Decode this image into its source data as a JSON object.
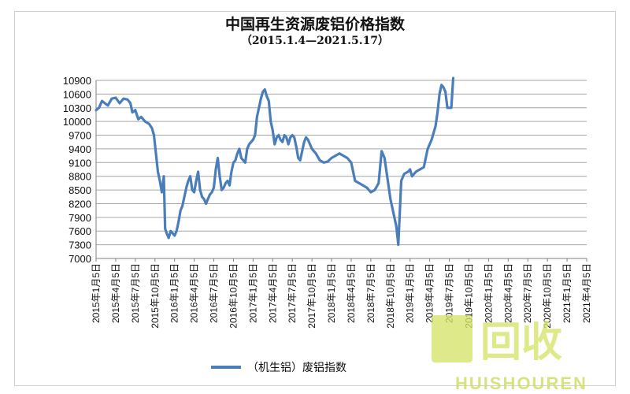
{
  "chart_data": {
    "type": "line",
    "title": "中国再生资源废铝价格指数",
    "subtitle": "（2015.1.4—2021.5.17）",
    "ylim": [
      7000,
      10900
    ],
    "yticks": [
      7000,
      7300,
      7600,
      7900,
      8200,
      8500,
      8800,
      9100,
      9400,
      9700,
      10000,
      10300,
      10600,
      10900
    ],
    "grid": true,
    "legend_position": "bottom",
    "x_categories": [
      "2015年1月5日",
      "2015年4月5日",
      "2015年7月5日",
      "2015年10月5日",
      "2016年1月5日",
      "2016年4月5日",
      "2016年7月5日",
      "2016年10月5日",
      "2017年1月5日",
      "2017年4月5日",
      "2017年7月5日",
      "2017年10月5日",
      "2018年1月5日",
      "2018年4月5日",
      "2018年7月5日",
      "2018年10月5日",
      "2019年1月5日",
      "2019年4月5日",
      "2019年7月5日",
      "2019年10月5日",
      "2020年1月5日",
      "2020年4月5日",
      "2020年7月5日",
      "2020年10月5日",
      "2021年1月5日",
      "2021年4月5日"
    ],
    "series": [
      {
        "name": "（机生铝）废铝指数",
        "color": "#4a7ebb",
        "points": [
          [
            0.0,
            10250
          ],
          [
            0.15,
            10300
          ],
          [
            0.3,
            10450
          ],
          [
            0.45,
            10400
          ],
          [
            0.6,
            10350
          ],
          [
            0.8,
            10500
          ],
          [
            1.0,
            10520
          ],
          [
            1.2,
            10400
          ],
          [
            1.4,
            10500
          ],
          [
            1.6,
            10480
          ],
          [
            1.75,
            10400
          ],
          [
            1.85,
            10200
          ],
          [
            2.0,
            10250
          ],
          [
            2.15,
            10050
          ],
          [
            2.3,
            10100
          ],
          [
            2.5,
            10000
          ],
          [
            2.7,
            9950
          ],
          [
            2.85,
            9850
          ],
          [
            2.95,
            9700
          ],
          [
            3.05,
            9300
          ],
          [
            3.15,
            8900
          ],
          [
            3.25,
            8700
          ],
          [
            3.35,
            8450
          ],
          [
            3.45,
            8800
          ],
          [
            3.52,
            7650
          ],
          [
            3.6,
            7550
          ],
          [
            3.7,
            7450
          ],
          [
            3.8,
            7600
          ],
          [
            3.9,
            7550
          ],
          [
            4.0,
            7500
          ],
          [
            4.1,
            7600
          ],
          [
            4.2,
            7800
          ],
          [
            4.3,
            8050
          ],
          [
            4.4,
            8150
          ],
          [
            4.5,
            8350
          ],
          [
            4.6,
            8550
          ],
          [
            4.7,
            8700
          ],
          [
            4.8,
            8800
          ],
          [
            4.9,
            8500
          ],
          [
            5.0,
            8450
          ],
          [
            5.1,
            8700
          ],
          [
            5.2,
            8900
          ],
          [
            5.3,
            8500
          ],
          [
            5.4,
            8350
          ],
          [
            5.5,
            8300
          ],
          [
            5.6,
            8200
          ],
          [
            5.7,
            8300
          ],
          [
            5.8,
            8400
          ],
          [
            5.9,
            8450
          ],
          [
            6.0,
            8550
          ],
          [
            6.1,
            8950
          ],
          [
            6.2,
            9200
          ],
          [
            6.3,
            8800
          ],
          [
            6.4,
            8500
          ],
          [
            6.5,
            8550
          ],
          [
            6.6,
            8650
          ],
          [
            6.7,
            8700
          ],
          [
            6.8,
            8600
          ],
          [
            6.9,
            8900
          ],
          [
            7.0,
            9100
          ],
          [
            7.1,
            9150
          ],
          [
            7.2,
            9300
          ],
          [
            7.3,
            9400
          ],
          [
            7.4,
            9200
          ],
          [
            7.5,
            9150
          ],
          [
            7.6,
            9100
          ],
          [
            7.7,
            9400
          ],
          [
            7.8,
            9500
          ],
          [
            7.9,
            9550
          ],
          [
            8.0,
            9600
          ],
          [
            8.1,
            9700
          ],
          [
            8.2,
            10100
          ],
          [
            8.3,
            10300
          ],
          [
            8.4,
            10500
          ],
          [
            8.5,
            10650
          ],
          [
            8.6,
            10700
          ],
          [
            8.7,
            10550
          ],
          [
            8.8,
            10450
          ],
          [
            8.9,
            10000
          ],
          [
            9.0,
            9800
          ],
          [
            9.1,
            9500
          ],
          [
            9.2,
            9650
          ],
          [
            9.3,
            9700
          ],
          [
            9.4,
            9600
          ],
          [
            9.5,
            9550
          ],
          [
            9.6,
            9700
          ],
          [
            9.7,
            9650
          ],
          [
            9.8,
            9500
          ],
          [
            9.9,
            9650
          ],
          [
            10.0,
            9700
          ],
          [
            10.1,
            9650
          ],
          [
            10.2,
            9450
          ],
          [
            10.3,
            9200
          ],
          [
            10.4,
            9150
          ],
          [
            10.5,
            9350
          ],
          [
            10.6,
            9550
          ],
          [
            10.7,
            9650
          ],
          [
            10.8,
            9600
          ],
          [
            10.9,
            9500
          ],
          [
            11.0,
            9400
          ],
          [
            11.2,
            9300
          ],
          [
            11.4,
            9150
          ],
          [
            11.6,
            9100
          ],
          [
            11.8,
            9120
          ],
          [
            12.0,
            9200
          ],
          [
            12.2,
            9250
          ],
          [
            12.4,
            9300
          ],
          [
            12.6,
            9250
          ],
          [
            12.8,
            9200
          ],
          [
            13.0,
            9100
          ],
          [
            13.2,
            8700
          ],
          [
            13.4,
            8650
          ],
          [
            13.6,
            8600
          ],
          [
            13.8,
            8550
          ],
          [
            14.0,
            8450
          ],
          [
            14.2,
            8500
          ],
          [
            14.4,
            8650
          ],
          [
            14.55,
            9350
          ],
          [
            14.7,
            9200
          ],
          [
            15.0,
            8300
          ],
          [
            15.3,
            7700
          ],
          [
            15.4,
            7300
          ],
          [
            15.55,
            8700
          ],
          [
            15.7,
            8850
          ],
          [
            15.9,
            8900
          ],
          [
            16.0,
            8950
          ],
          [
            16.1,
            8800
          ],
          [
            16.3,
            8900
          ],
          [
            16.5,
            8950
          ],
          [
            16.7,
            9000
          ],
          [
            16.9,
            9400
          ],
          [
            17.1,
            9600
          ],
          [
            17.3,
            9900
          ],
          [
            17.4,
            10200
          ],
          [
            17.5,
            10600
          ],
          [
            17.6,
            10800
          ],
          [
            17.7,
            10750
          ],
          [
            17.8,
            10650
          ],
          [
            17.9,
            10300
          ],
          [
            18.0,
            10300
          ],
          [
            18.1,
            10300
          ],
          [
            18.2,
            10950
          ]
        ]
      }
    ],
    "watermark": "HUISHOUREN",
    "watermark_logo_text": "回收"
  }
}
